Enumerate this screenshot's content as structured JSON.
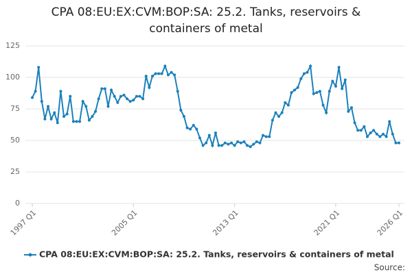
{
  "chart_data": {
    "type": "line",
    "title": "CPA 08:EU:EX:CVM:BOP:SA: 25.2. Tanks, reservoirs & containers of metal",
    "categories": [
      "1997 Q1",
      null,
      null,
      null,
      null,
      null,
      null,
      null,
      null,
      null,
      null,
      null,
      null,
      null,
      null,
      null,
      null,
      null,
      null,
      null,
      null,
      null,
      null,
      null,
      null,
      null,
      null,
      null,
      null,
      null,
      null,
      null,
      "2005 Q1",
      null,
      null,
      null,
      null,
      null,
      null,
      null,
      null,
      null,
      null,
      null,
      null,
      null,
      null,
      null,
      null,
      null,
      null,
      null,
      null,
      null,
      null,
      null,
      null,
      null,
      null,
      null,
      null,
      null,
      null,
      null,
      "2013 Q1",
      null,
      null,
      null,
      null,
      null,
      null,
      null,
      null,
      null,
      null,
      null,
      null,
      null,
      null,
      null,
      null,
      null,
      null,
      null,
      null,
      null,
      null,
      null,
      null,
      null,
      null,
      null,
      null,
      null,
      null,
      null,
      "2021 Q1",
      null,
      null,
      null,
      null,
      null,
      null,
      null,
      null,
      null,
      null,
      null,
      null,
      null,
      null,
      null,
      null,
      null,
      null,
      null,
      "2026 Q1"
    ],
    "series": [
      {
        "name": "CPA 08:EU:EX:CVM:BOP:SA: 25.2. Tanks, reservoirs & containers of metal",
        "color": "#1a80bb",
        "values": [
          84,
          89,
          108,
          81,
          67,
          77,
          67,
          72,
          64,
          89,
          69,
          71,
          85,
          65,
          65,
          65,
          81,
          77,
          66,
          69,
          73,
          83,
          91,
          91,
          77,
          90,
          85,
          80,
          85,
          86,
          83,
          81,
          82,
          85,
          85,
          83,
          101,
          92,
          101,
          103,
          103,
          103,
          109,
          102,
          104,
          102,
          89,
          74,
          69,
          60,
          59,
          62,
          59,
          52,
          46,
          48,
          54,
          46,
          56,
          46,
          46,
          48,
          47,
          48,
          46,
          49,
          48,
          49,
          46,
          45,
          47,
          49,
          48,
          54,
          53,
          53,
          66,
          72,
          69,
          72,
          80,
          78,
          88,
          90,
          92,
          99,
          103,
          104,
          109,
          87,
          88,
          89,
          78,
          72,
          89,
          97,
          93,
          108,
          91,
          98,
          73,
          76,
          64,
          58,
          58,
          61,
          53,
          56,
          58,
          55,
          53,
          55,
          53,
          65,
          55,
          48,
          48
        ]
      }
    ],
    "ylim": [
      0,
      125
    ],
    "yticks": [
      0,
      25,
      50,
      75,
      100,
      125
    ],
    "grid": true,
    "legend": "bottom",
    "source": "Source:"
  }
}
